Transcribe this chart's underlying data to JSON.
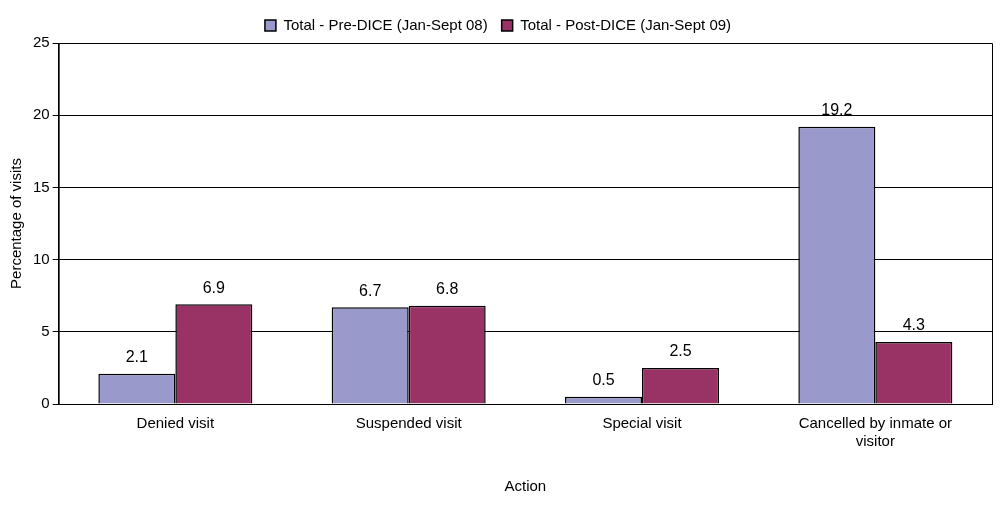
{
  "chart_data": {
    "type": "bar",
    "xlabel": "Action",
    "ylabel": "Percentage of visits",
    "categories": [
      "Denied visit",
      "Suspended visit",
      "Special visit",
      "Cancelled by inmate or visitor"
    ],
    "series": [
      {
        "name": "Total - Pre-DICE (Jan-Sept 08)",
        "color": "#9999cc",
        "values": [
          2.1,
          6.7,
          0.5,
          19.2
        ]
      },
      {
        "name": "Total - Post-DICE (Jan-Sept 09)",
        "color": "#993366",
        "values": [
          6.9,
          6.8,
          2.5,
          4.3
        ]
      }
    ],
    "ylim": [
      0,
      25
    ],
    "yticks": [
      0,
      5,
      10,
      15,
      20,
      25
    ],
    "grid": "y",
    "legend": "top",
    "data_labels": true
  }
}
